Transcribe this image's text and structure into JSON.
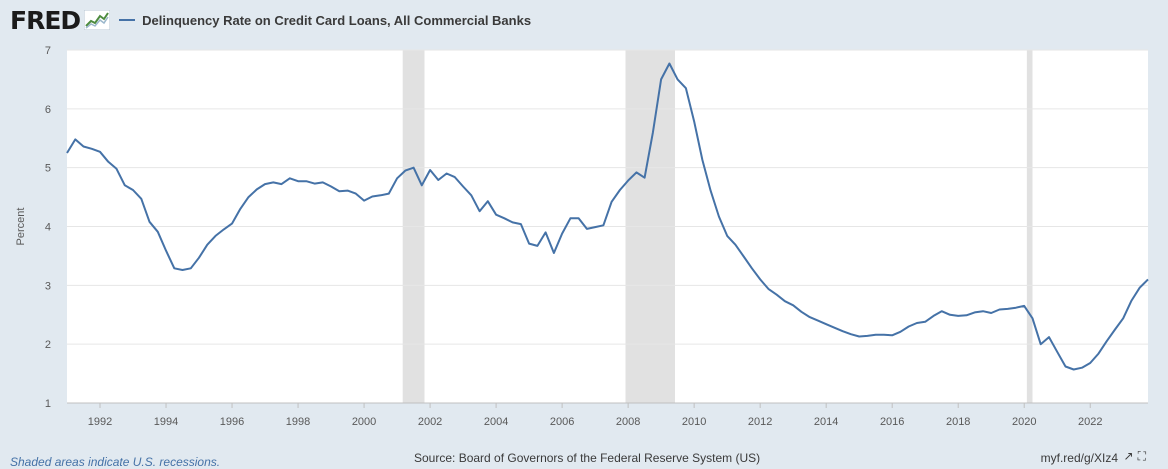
{
  "header": {
    "logo": "FRED",
    "series_title": "Delinquency Rate on Credit Card Loans, All Commercial Banks"
  },
  "footer": {
    "recession_note": "Shaded areas indicate U.S. recessions.",
    "source": "Source: Board of Governors of the Federal Reserve System (US)",
    "link": "myfred/g/XIz4",
    "link_display": "myf.red/g/XIz4"
  },
  "colors": {
    "series": "#4572a7",
    "recession": "#e1e1e1",
    "background": "#e1e9f0",
    "plot": "#ffffff",
    "grid": "#e6e6e6"
  },
  "chart_data": {
    "type": "line",
    "title": "Delinquency Rate on Credit Card Loans, All Commercial Banks",
    "ylabel": "Percent",
    "xlabel": "",
    "ylim": [
      1,
      7
    ],
    "xlim": [
      1991.0,
      2023.75
    ],
    "yticks": [
      1,
      2,
      3,
      4,
      5,
      6,
      7
    ],
    "xticks": [
      1992,
      1994,
      1996,
      1998,
      2000,
      2002,
      2004,
      2006,
      2008,
      2010,
      2012,
      2014,
      2016,
      2018,
      2020,
      2022
    ],
    "grid": true,
    "recessions": [
      [
        2001.17,
        2001.83
      ],
      [
        2007.92,
        2009.42
      ],
      [
        2020.08,
        2020.25
      ]
    ],
    "series": [
      {
        "name": "Delinquency Rate on Credit Card Loans, All Commercial Banks",
        "x": [
          1991.0,
          1991.25,
          1991.5,
          1991.75,
          1992.0,
          1992.25,
          1992.5,
          1992.75,
          1993.0,
          1993.25,
          1993.5,
          1993.75,
          1994.0,
          1994.25,
          1994.5,
          1994.75,
          1995.0,
          1995.25,
          1995.5,
          1995.75,
          1996.0,
          1996.25,
          1996.5,
          1996.75,
          1997.0,
          1997.25,
          1997.5,
          1997.75,
          1998.0,
          1998.25,
          1998.5,
          1998.75,
          1999.0,
          1999.25,
          1999.5,
          1999.75,
          2000.0,
          2000.25,
          2000.5,
          2000.75,
          2001.0,
          2001.25,
          2001.5,
          2001.75,
          2002.0,
          2002.25,
          2002.5,
          2002.75,
          2003.0,
          2003.25,
          2003.5,
          2003.75,
          2004.0,
          2004.25,
          2004.5,
          2004.75,
          2005.0,
          2005.25,
          2005.5,
          2005.75,
          2006.0,
          2006.25,
          2006.5,
          2006.75,
          2007.0,
          2007.25,
          2007.5,
          2007.75,
          2008.0,
          2008.25,
          2008.5,
          2008.75,
          2009.0,
          2009.25,
          2009.5,
          2009.75,
          2010.0,
          2010.25,
          2010.5,
          2010.75,
          2011.0,
          2011.25,
          2011.5,
          2011.75,
          2012.0,
          2012.25,
          2012.5,
          2012.75,
          2013.0,
          2013.25,
          2013.5,
          2013.75,
          2014.0,
          2014.25,
          2014.5,
          2014.75,
          2015.0,
          2015.25,
          2015.5,
          2015.75,
          2016.0,
          2016.25,
          2016.5,
          2016.75,
          2017.0,
          2017.25,
          2017.5,
          2017.75,
          2018.0,
          2018.25,
          2018.5,
          2018.75,
          2019.0,
          2019.25,
          2019.5,
          2019.75,
          2020.0,
          2020.25,
          2020.5,
          2020.75,
          2021.0,
          2021.25,
          2021.5,
          2021.75,
          2022.0,
          2022.25,
          2022.5,
          2022.75,
          2023.0,
          2023.25,
          2023.5,
          2023.75
        ],
        "y": [
          5.25,
          5.48,
          5.36,
          5.32,
          5.27,
          5.1,
          4.98,
          4.7,
          4.62,
          4.47,
          4.08,
          3.91,
          3.59,
          3.29,
          3.26,
          3.29,
          3.47,
          3.69,
          3.84,
          3.95,
          4.05,
          4.3,
          4.5,
          4.63,
          4.72,
          4.75,
          4.72,
          4.82,
          4.77,
          4.77,
          4.73,
          4.75,
          4.68,
          4.6,
          4.61,
          4.56,
          4.44,
          4.51,
          4.53,
          4.56,
          4.82,
          4.95,
          5.0,
          4.7,
          4.96,
          4.79,
          4.9,
          4.84,
          4.68,
          4.53,
          4.26,
          4.43,
          4.2,
          4.14,
          4.07,
          4.04,
          3.71,
          3.67,
          3.9,
          3.55,
          3.88,
          4.14,
          4.14,
          3.96,
          3.99,
          4.02,
          4.42,
          4.62,
          4.78,
          4.92,
          4.83,
          5.6,
          6.5,
          6.77,
          6.5,
          6.35,
          5.79,
          5.13,
          4.61,
          4.17,
          3.84,
          3.69,
          3.49,
          3.29,
          3.1,
          2.94,
          2.84,
          2.73,
          2.66,
          2.55,
          2.46,
          2.4,
          2.34,
          2.28,
          2.22,
          2.17,
          2.13,
          2.14,
          2.16,
          2.16,
          2.15,
          2.21,
          2.3,
          2.36,
          2.38,
          2.48,
          2.56,
          2.5,
          2.48,
          2.49,
          2.54,
          2.56,
          2.53,
          2.59,
          2.6,
          2.62,
          2.65,
          2.44,
          2.0,
          2.12,
          1.87,
          1.62,
          1.57,
          1.6,
          1.68,
          1.84,
          2.05,
          2.25,
          2.44,
          2.74,
          2.96,
          3.1
        ]
      }
    ]
  }
}
